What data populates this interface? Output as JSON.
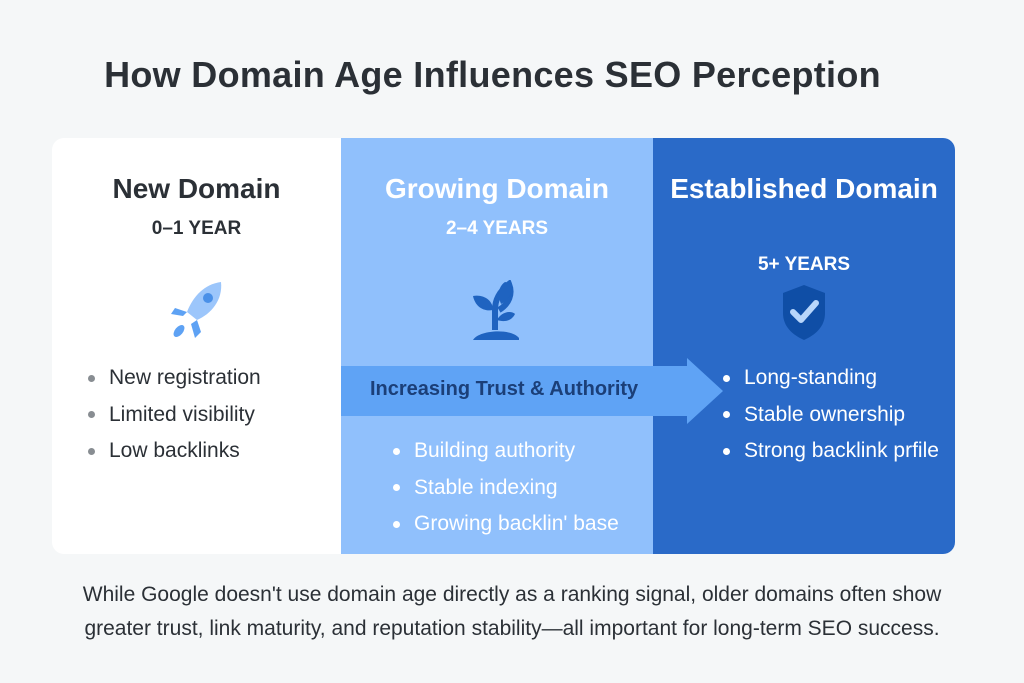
{
  "title": "How Domain Age Influences SEO Perception",
  "columns": [
    {
      "heading": "New Domain",
      "age": "0–1 YEAR",
      "icon": "rocket-icon",
      "bullets": [
        "New registration",
        "Limited visibility",
        "Low backlinks"
      ]
    },
    {
      "heading": "Growing Domain",
      "age": "2–4 YEARS",
      "icon": "sprout-icon",
      "bullets": [
        "Building authority",
        "Stable indexing",
        "Growing backlin' base"
      ]
    },
    {
      "heading": "Established Domain",
      "age": "5+ YEARS",
      "icon": "shield-check-icon",
      "bullets": [
        "Long-standing",
        "Stable ownership",
        "Strong backlink prfile"
      ]
    }
  ],
  "arrow_label": "Increasing Trust & Authority",
  "footer": "While Google doesn't use domain age directly as a ranking signal, older domains often show greater trust, link maturity, and reputation stability—all important for long-term SEO success.",
  "colors": {
    "new": "#ffffff",
    "growing": "#90c0fc",
    "established": "#2a6ac8",
    "arrow": "#5fa3f5"
  }
}
